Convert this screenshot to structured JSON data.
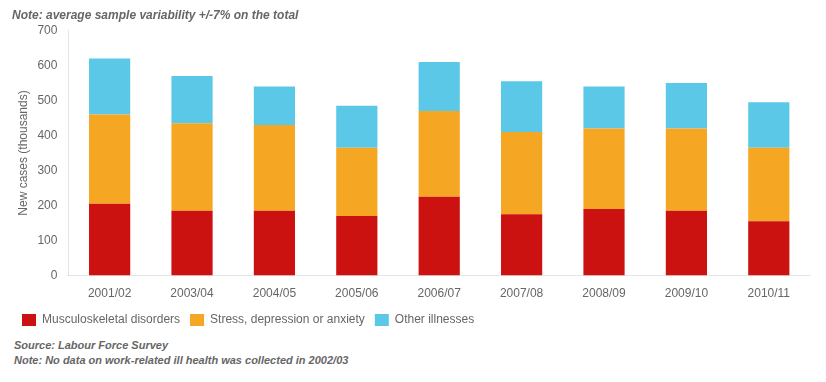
{
  "chart_data": {
    "type": "bar",
    "stacked": true,
    "categories": [
      "2001/02",
      "2003/04",
      "2004/05",
      "2005/06",
      "2006/07",
      "2007/08",
      "2008/09",
      "2009/10",
      "2010/11"
    ],
    "series": [
      {
        "name": "Musculoskeletal disorders",
        "color": "#CC1111",
        "values": [
          205,
          185,
          185,
          170,
          225,
          175,
          190,
          185,
          155
        ]
      },
      {
        "name": "Stress, depression or anxiety",
        "color": "#F5A623",
        "values": [
          255,
          250,
          245,
          195,
          245,
          235,
          230,
          235,
          210
        ]
      },
      {
        "name": "Other illnesses",
        "color": "#5BC8E8",
        "values": [
          160,
          135,
          110,
          120,
          140,
          145,
          120,
          130,
          130
        ]
      }
    ],
    "ylabel": "New cases (thousands)",
    "ylim": [
      0,
      700
    ],
    "yticks": [
      0,
      100,
      200,
      300,
      400,
      500,
      600,
      700
    ],
    "grid": false,
    "legend": "lower left",
    "annotations": [
      "Note: average sample variability +/-7% on the total",
      "Source: Labour Force Survey",
      "Note: No data on work-related ill health was collected in 2002/03"
    ]
  }
}
